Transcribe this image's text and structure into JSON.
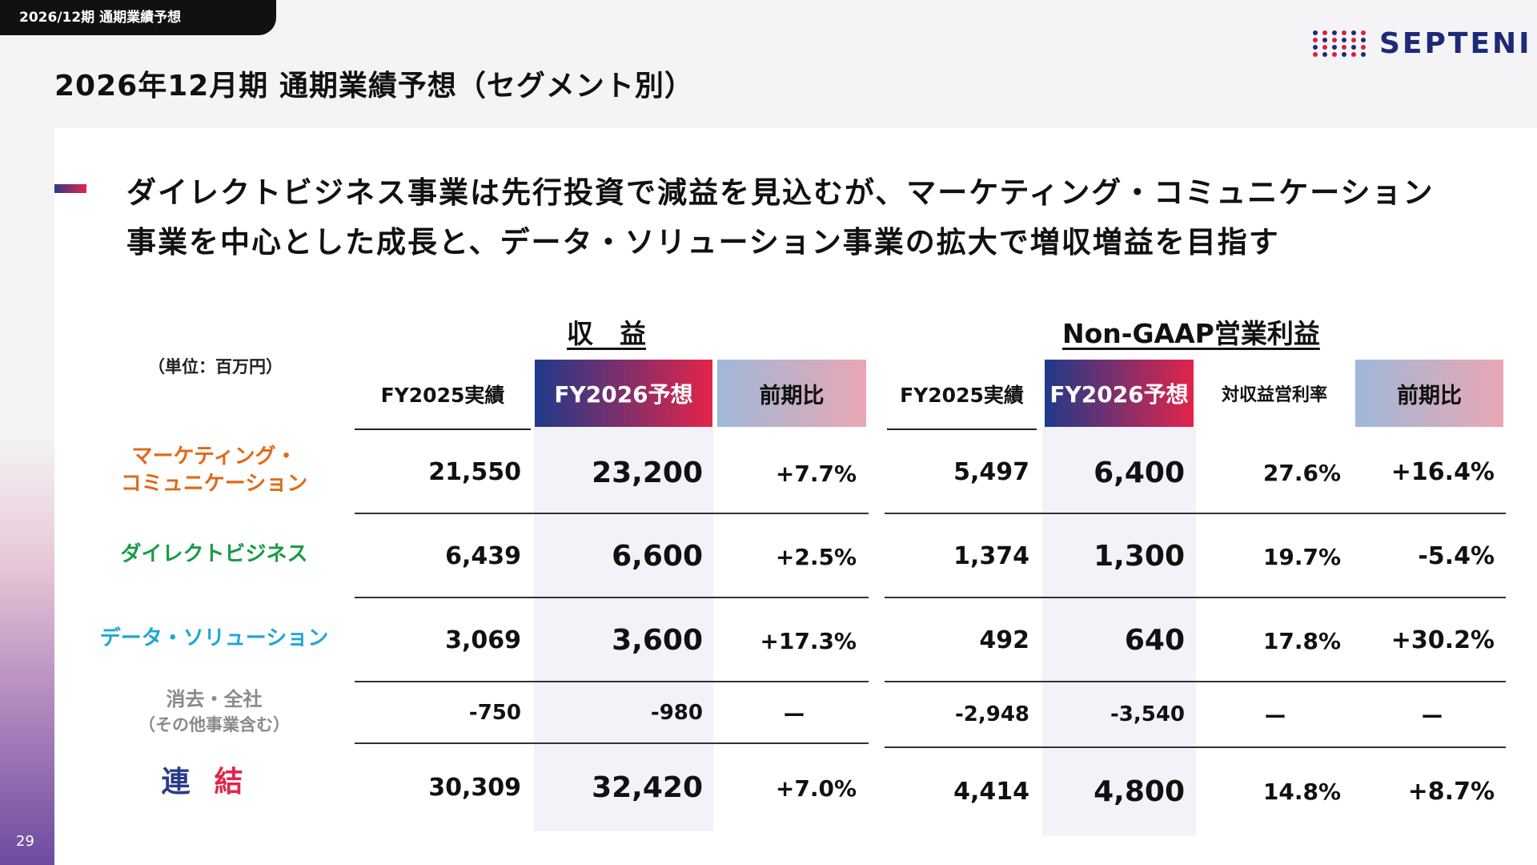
{
  "tab_label": "2026/12期 通期業績予想",
  "page_title": "2026年12月期 通期業績予想（セグメント別）",
  "logo_text": "SEPTENI",
  "page_number": "29",
  "headline": [
    "ダイレクトビジネス事業は先行投資で減益を見込むが、マーケティング・コミュニケーション",
    "事業を中心とした成長と、データ・ソリューション事業の拡大で増収増益を目指す"
  ],
  "unit_label": "（単位：百万円）",
  "revenue": {
    "title": "収　益",
    "headers": [
      "FY2025実績",
      "FY2026予想",
      "前期比"
    ]
  },
  "profit": {
    "title": "Non-GAAP営業利益",
    "headers": [
      "FY2025実績",
      "FY2026予想",
      "対収益営利率",
      "前期比"
    ]
  },
  "segments": [
    {
      "name": [
        "マーケティング・",
        "コミュニケーション"
      ],
      "rev": [
        "21,550",
        "23,200",
        "+7.7%"
      ],
      "op": [
        "5,497",
        "6,400",
        "27.6%",
        "+16.4%"
      ]
    },
    {
      "name": [
        "ダイレクトビジネス"
      ],
      "rev": [
        "6,439",
        "6,600",
        "+2.5%"
      ],
      "op": [
        "1,374",
        "1,300",
        "19.7%",
        "-5.4%"
      ]
    },
    {
      "name": [
        "データ・ソリューション"
      ],
      "rev": [
        "3,069",
        "3,600",
        "+17.3%"
      ],
      "op": [
        "492",
        "640",
        "17.8%",
        "+30.2%"
      ]
    },
    {
      "name": [
        "消去・全社",
        "（その他事業含む）"
      ],
      "rev": [
        "-750",
        "-980",
        "ー"
      ],
      "op": [
        "-2,948",
        "-3,540",
        "ー",
        "ー"
      ]
    },
    {
      "name": [
        "連",
        "結"
      ],
      "rev": [
        "30,309",
        "32,420",
        "+7.0%"
      ],
      "op": [
        "4,414",
        "4,800",
        "14.8%",
        "+8.7%"
      ]
    }
  ],
  "colors": {
    "accent_navy": "#1e3a8a",
    "accent_red": "#e3244a",
    "mc": "#e06a18",
    "db": "#1a9a48",
    "ds": "#1fa6d6",
    "elim": "#8a8a8a"
  }
}
